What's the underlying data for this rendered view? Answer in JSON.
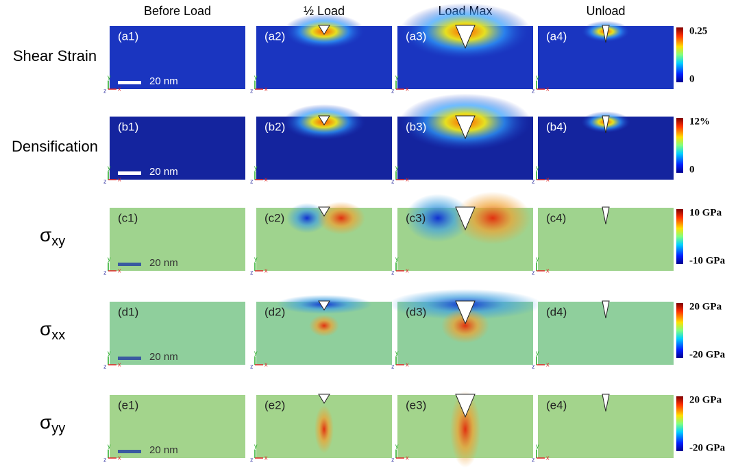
{
  "columns": [
    "Before Load",
    "½ Load",
    "Load Max",
    "Unload"
  ],
  "rows": [
    {
      "label": "Shear Strain",
      "panels": [
        "(a1)",
        "(a2)",
        "(a3)",
        "(a4)"
      ],
      "colorbar": {
        "max": "0.25",
        "min": "0"
      }
    },
    {
      "label": "Densification",
      "panels": [
        "(b1)",
        "(b2)",
        "(b3)",
        "(b4)"
      ],
      "colorbar": {
        "max": "12%",
        "min": "0"
      }
    },
    {
      "symbol": "σ",
      "subscript": "xy",
      "panels": [
        "(c1)",
        "(c2)",
        "(c3)",
        "(c4)"
      ],
      "colorbar": {
        "max": "10 GPa",
        "min": "-10 GPa"
      }
    },
    {
      "symbol": "σ",
      "subscript": "xx",
      "panels": [
        "(d1)",
        "(d2)",
        "(d3)",
        "(d4)"
      ],
      "colorbar": {
        "max": "20 GPa",
        "min": "-20 GPa"
      }
    },
    {
      "symbol": "σ",
      "subscript": "yy",
      "panels": [
        "(e1)",
        "(e2)",
        "(e3)",
        "(e4)"
      ],
      "colorbar": {
        "max": "20 GPa",
        "min": "-20 GPa"
      }
    }
  ],
  "scale_bar": "20 nm",
  "axes": {
    "x": "x",
    "y": "y",
    "z": "z"
  }
}
